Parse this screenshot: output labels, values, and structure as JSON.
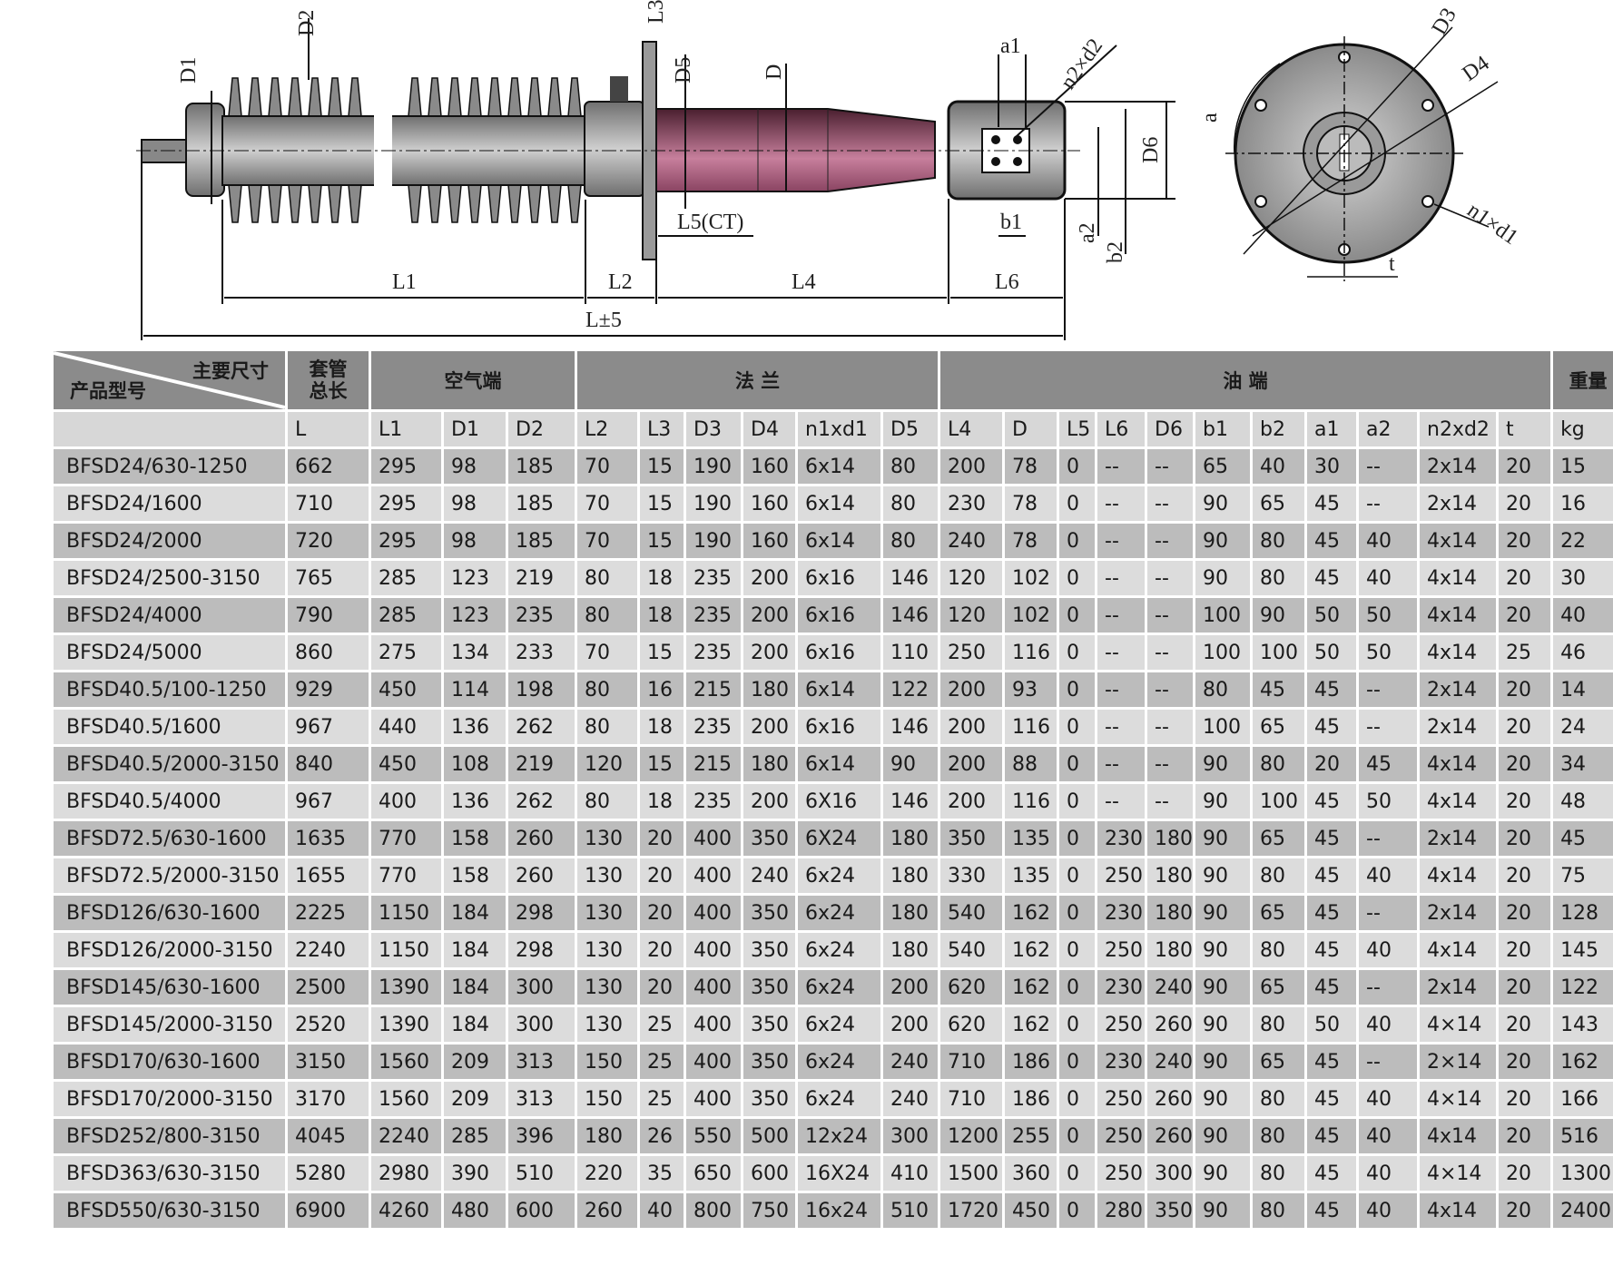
{
  "drawing": {
    "labels": {
      "D1": "D1",
      "D2": "D2",
      "L3": "L3",
      "D5": "D5",
      "D": "D",
      "a1": "a1",
      "n2d2": "n2×d2",
      "D6": "D6",
      "L5CT": "L5(CT)",
      "b1": "b1",
      "a2": "a2",
      "b2": "b2",
      "L1": "L1",
      "L2": "L2",
      "L4": "L4",
      "L6": "L6",
      "Ltol": "L±5",
      "D3": "D3",
      "D4": "D4",
      "a": "a",
      "n1d1": "n1×d1",
      "t": "t"
    },
    "colors": {
      "porcelain": "#8e8e8e",
      "tube": "#b56a8a",
      "flange": "#9a9a9a"
    }
  },
  "table": {
    "corner_top": "主要尺寸",
    "corner_bottom": "产品型号",
    "groups": {
      "total": "套管\n总长",
      "air": "空气端",
      "flange": "法 兰",
      "oil": "油 端",
      "weight": "重量"
    },
    "columns": [
      "",
      "L",
      "L1",
      "D1",
      "D2",
      "L2",
      "L3",
      "D3",
      "D4",
      "n1xd1",
      "D5",
      "L4",
      "D",
      "L5",
      "L6",
      "D6",
      "b1",
      "b2",
      "a1",
      "a2",
      "n2xd2",
      "t",
      "kg"
    ],
    "rows": [
      [
        "BFSD24/630-1250",
        "662",
        "295",
        "98",
        "185",
        "70",
        "15",
        "190",
        "160",
        "6x14",
        "80",
        "200",
        "78",
        "0",
        "--",
        "--",
        "65",
        "40",
        "30",
        "--",
        "2x14",
        "20",
        "15"
      ],
      [
        "BFSD24/1600",
        "710",
        "295",
        "98",
        "185",
        "70",
        "15",
        "190",
        "160",
        "6x14",
        "80",
        "230",
        "78",
        "0",
        "--",
        "--",
        "90",
        "65",
        "45",
        "--",
        "2x14",
        "20",
        "16"
      ],
      [
        "BFSD24/2000",
        "720",
        "295",
        "98",
        "185",
        "70",
        "15",
        "190",
        "160",
        "6x14",
        "80",
        "240",
        "78",
        "0",
        "--",
        "--",
        "90",
        "80",
        "45",
        "40",
        "4x14",
        "20",
        "22"
      ],
      [
        "BFSD24/2500-3150",
        "765",
        "285",
        "123",
        "219",
        "80",
        "18",
        "235",
        "200",
        "6x16",
        "146",
        "120",
        "102",
        "0",
        "--",
        "--",
        "90",
        "80",
        "45",
        "40",
        "4x14",
        "20",
        "30"
      ],
      [
        "BFSD24/4000",
        "790",
        "285",
        "123",
        "235",
        "80",
        "18",
        "235",
        "200",
        "6x16",
        "146",
        "120",
        "102",
        "0",
        "--",
        "--",
        "100",
        "90",
        "50",
        "50",
        "4x14",
        "20",
        "40"
      ],
      [
        "BFSD24/5000",
        "860",
        "275",
        "134",
        "233",
        "70",
        "15",
        "235",
        "200",
        "6x16",
        "110",
        "250",
        "116",
        "0",
        "--",
        "--",
        "100",
        "100",
        "50",
        "50",
        "4x14",
        "25",
        "46"
      ],
      [
        "BFSD40.5/100-1250",
        "929",
        "450",
        "114",
        "198",
        "80",
        "16",
        "215",
        "180",
        "6x14",
        "122",
        "200",
        "93",
        "0",
        "--",
        "--",
        "80",
        "45",
        "45",
        "--",
        "2x14",
        "20",
        "14"
      ],
      [
        "BFSD40.5/1600",
        "967",
        "440",
        "136",
        "262",
        "80",
        "18",
        "235",
        "200",
        "6x16",
        "146",
        "200",
        "116",
        "0",
        "--",
        "--",
        "100",
        "65",
        "45",
        "--",
        "2x14",
        "20",
        "24"
      ],
      [
        "BFSD40.5/2000-3150",
        "840",
        "450",
        "108",
        "219",
        "120",
        "15",
        "215",
        "180",
        "6x14",
        "90",
        "200",
        "88",
        "0",
        "--",
        "--",
        "90",
        "80",
        "20",
        "45",
        "4x14",
        "20",
        "34"
      ],
      [
        "BFSD40.5/4000",
        "967",
        "400",
        "136",
        "262",
        "80",
        "18",
        "235",
        "200",
        "6X16",
        "146",
        "200",
        "116",
        "0",
        "--",
        "--",
        "90",
        "100",
        "45",
        "50",
        "4x14",
        "20",
        "48"
      ],
      [
        "BFSD72.5/630-1600",
        "1635",
        "770",
        "158",
        "260",
        "130",
        "20",
        "400",
        "350",
        "6X24",
        "180",
        "350",
        "135",
        "0",
        "230",
        "180",
        "90",
        "65",
        "45",
        "--",
        "2x14",
        "20",
        "45"
      ],
      [
        "BFSD72.5/2000-3150",
        "1655",
        "770",
        "158",
        "260",
        "130",
        "20",
        "400",
        "240",
        "6x24",
        "180",
        "330",
        "135",
        "0",
        "250",
        "180",
        "90",
        "80",
        "45",
        "40",
        "4x14",
        "20",
        "75"
      ],
      [
        "BFSD126/630-1600",
        "2225",
        "1150",
        "184",
        "298",
        "130",
        "20",
        "400",
        "350",
        "6x24",
        "180",
        "540",
        "162",
        "0",
        "230",
        "180",
        "90",
        "65",
        "45",
        "--",
        "2x14",
        "20",
        "128"
      ],
      [
        "BFSD126/2000-3150",
        "2240",
        "1150",
        "184",
        "298",
        "130",
        "20",
        "400",
        "350",
        "6x24",
        "180",
        "540",
        "162",
        "0",
        "250",
        "180",
        "90",
        "80",
        "45",
        "40",
        "4x14",
        "20",
        "145"
      ],
      [
        "BFSD145/630-1600",
        "2500",
        "1390",
        "184",
        "300",
        "130",
        "20",
        "400",
        "350",
        "6x24",
        "200",
        "620",
        "162",
        "0",
        "230",
        "240",
        "90",
        "65",
        "45",
        "--",
        "2x14",
        "20",
        "122"
      ],
      [
        "BFSD145/2000-3150",
        "2520",
        "1390",
        "184",
        "300",
        "130",
        "25",
        "400",
        "350",
        "6x24",
        "200",
        "620",
        "162",
        "0",
        "250",
        "260",
        "90",
        "80",
        "50",
        "40",
        "4×14",
        "20",
        "143"
      ],
      [
        "BFSD170/630-1600",
        "3150",
        "1560",
        "209",
        "313",
        "150",
        "25",
        "400",
        "350",
        "6x24",
        "240",
        "710",
        "186",
        "0",
        "230",
        "240",
        "90",
        "65",
        "45",
        "--",
        "2×14",
        "20",
        "162"
      ],
      [
        "BFSD170/2000-3150",
        "3170",
        "1560",
        "209",
        "313",
        "150",
        "25",
        "400",
        "350",
        "6x24",
        "240",
        "710",
        "186",
        "0",
        "250",
        "260",
        "90",
        "80",
        "45",
        "40",
        "4×14",
        "20",
        "166"
      ],
      [
        "BFSD252/800-3150",
        "4045",
        "2240",
        "285",
        "396",
        "180",
        "26",
        "550",
        "500",
        "12x24",
        "300",
        "1200",
        "255",
        "0",
        "250",
        "260",
        "90",
        "80",
        "45",
        "40",
        "4x14",
        "20",
        "516"
      ],
      [
        "BFSD363/630-3150",
        "5280",
        "2980",
        "390",
        "510",
        "220",
        "35",
        "650",
        "600",
        "16X24",
        "410",
        "1500",
        "360",
        "0",
        "250",
        "300",
        "90",
        "80",
        "45",
        "40",
        "4×14",
        "20",
        "1300"
      ],
      [
        "BFSD550/630-3150",
        "6900",
        "4260",
        "480",
        "600",
        "260",
        "40",
        "800",
        "750",
        "16x24",
        "510",
        "1720",
        "450",
        "0",
        "280",
        "350",
        "90",
        "80",
        "45",
        "40",
        "4x14",
        "20",
        "2400"
      ]
    ]
  }
}
